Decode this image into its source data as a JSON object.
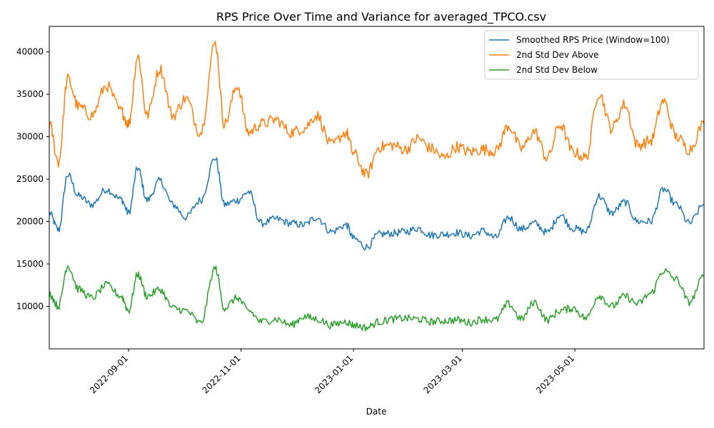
{
  "chart_data": {
    "type": "line",
    "title": "RPS Price Over Time and Variance for averaged_TPCO.csv",
    "xlabel": "Date",
    "ylabel": "",
    "xlim": [
      "2022-07-20",
      "2023-07-10"
    ],
    "ylim": [
      5000,
      43000
    ],
    "x_ticks": [
      "2022-09-01",
      "2022-11-01",
      "2023-01-01",
      "2023-03-01",
      "2023-05-01"
    ],
    "y_ticks": [
      10000,
      15000,
      20000,
      25000,
      30000,
      35000,
      40000
    ],
    "grid": false,
    "legend_position": "top-right",
    "x": [
      "2022-07-20",
      "2022-07-25",
      "2022-07-30",
      "2022-08-05",
      "2022-08-12",
      "2022-08-20",
      "2022-08-28",
      "2022-09-01",
      "2022-09-06",
      "2022-09-11",
      "2022-09-18",
      "2022-09-25",
      "2022-10-02",
      "2022-10-10",
      "2022-10-18",
      "2022-10-23",
      "2022-10-30",
      "2022-11-05",
      "2022-11-12",
      "2022-11-20",
      "2022-11-28",
      "2022-12-05",
      "2022-12-12",
      "2022-12-20",
      "2022-12-28",
      "2023-01-01",
      "2023-01-08",
      "2023-01-15",
      "2023-01-22",
      "2023-01-29",
      "2023-02-05",
      "2023-02-12",
      "2023-02-19",
      "2023-02-26",
      "2023-03-05",
      "2023-03-12",
      "2023-03-19",
      "2023-03-26",
      "2023-04-02",
      "2023-04-09",
      "2023-04-16",
      "2023-04-23",
      "2023-04-30",
      "2023-05-07",
      "2023-05-14",
      "2023-05-21",
      "2023-05-28",
      "2023-06-04",
      "2023-06-11",
      "2023-06-18",
      "2023-06-25",
      "2023-07-02",
      "2023-07-10"
    ],
    "series": [
      {
        "name": "Smoothed RPS Price (Window=100)",
        "color": "#1f77b4",
        "values": [
          21000,
          19000,
          25500,
          23000,
          22000,
          23800,
          22600,
          21000,
          26300,
          22500,
          24800,
          22000,
          20500,
          22500,
          27500,
          22000,
          22500,
          23500,
          19800,
          20300,
          19800,
          19600,
          20500,
          18800,
          19600,
          18000,
          17000,
          18500,
          18600,
          18800,
          19200,
          18400,
          18500,
          18700,
          18300,
          18900,
          18100,
          20500,
          19100,
          19800,
          18700,
          20800,
          19200,
          18800,
          23000,
          21000,
          22300,
          20000,
          20000,
          23800,
          22000,
          19800,
          22000
        ]
      },
      {
        "name": "2nd Std Dev Above",
        "color": "#ff7f0e",
        "values": [
          31500,
          27000,
          36800,
          33500,
          32500,
          36000,
          33000,
          31500,
          39500,
          32500,
          38000,
          32500,
          34500,
          30500,
          41000,
          31500,
          36000,
          30500,
          31500,
          32000,
          30500,
          31000,
          32500,
          29000,
          30500,
          28000,
          25500,
          28800,
          29000,
          28500,
          29800,
          28600,
          27500,
          28800,
          28200,
          28500,
          28300,
          31300,
          28600,
          30600,
          27500,
          31400,
          28200,
          27500,
          35200,
          31000,
          33800,
          29000,
          29500,
          34200,
          30000,
          28500,
          31500
        ]
      },
      {
        "name": "2nd Std Dev Below",
        "color": "#2ca02c",
        "values": [
          11500,
          10000,
          14800,
          12000,
          11000,
          12500,
          11200,
          9500,
          13800,
          11200,
          12000,
          9800,
          9500,
          8000,
          14500,
          9800,
          11000,
          9500,
          8200,
          8500,
          7800,
          8800,
          8500,
          7800,
          8200,
          7800,
          7500,
          8200,
          8500,
          8600,
          8500,
          8200,
          8300,
          8400,
          8100,
          8500,
          8400,
          10300,
          8500,
          10500,
          8400,
          9500,
          9800,
          8600,
          11300,
          10000,
          11200,
          10300,
          11500,
          14200,
          13200,
          10500,
          13500
        ]
      }
    ]
  }
}
